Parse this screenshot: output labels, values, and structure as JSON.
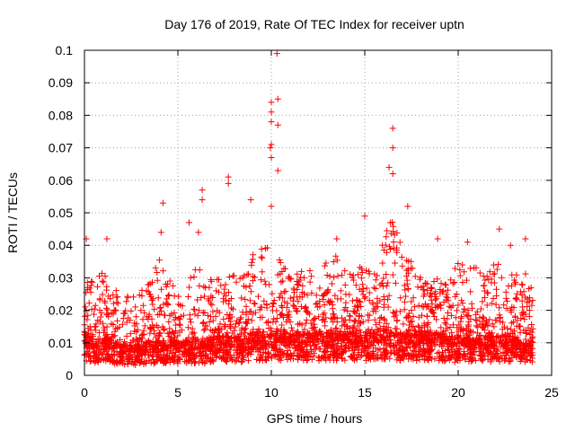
{
  "chart_data": {
    "type": "scatter",
    "title": "Day 176 of 2019, Rate Of TEC Index for receiver uptn",
    "xlabel": "GPS time / hours",
    "ylabel": "ROTI / TECUs",
    "xlim": [
      0,
      25
    ],
    "ylim": [
      0,
      0.1
    ],
    "x_ticks": [
      "0",
      "5",
      "10",
      "15",
      "20",
      "25"
    ],
    "y_ticks": [
      "0",
      "0.01",
      "0.02",
      "0.03",
      "0.04",
      "0.05",
      "0.06",
      "0.07",
      "0.08",
      "0.09",
      "0.1"
    ],
    "grid": true,
    "marker": "+",
    "series": [
      {
        "name": "ROTI",
        "color": "#ff0000",
        "notable_points": [
          {
            "x": 10.3,
            "y": 0.099
          },
          {
            "x": 10.35,
            "y": 0.085
          },
          {
            "x": 10.0,
            "y": 0.084
          },
          {
            "x": 10.0,
            "y": 0.081
          },
          {
            "x": 10.35,
            "y": 0.077
          },
          {
            "x": 10.0,
            "y": 0.078
          },
          {
            "x": 16.5,
            "y": 0.076
          },
          {
            "x": 10.0,
            "y": 0.071
          },
          {
            "x": 9.95,
            "y": 0.07
          },
          {
            "x": 16.5,
            "y": 0.07
          },
          {
            "x": 10.0,
            "y": 0.067
          },
          {
            "x": 16.3,
            "y": 0.064
          },
          {
            "x": 10.35,
            "y": 0.063
          },
          {
            "x": 16.5,
            "y": 0.062
          },
          {
            "x": 7.7,
            "y": 0.061
          },
          {
            "x": 7.7,
            "y": 0.059
          },
          {
            "x": 6.3,
            "y": 0.057
          },
          {
            "x": 6.3,
            "y": 0.054
          },
          {
            "x": 8.9,
            "y": 0.054
          },
          {
            "x": 4.2,
            "y": 0.053
          },
          {
            "x": 10.0,
            "y": 0.052
          },
          {
            "x": 17.3,
            "y": 0.052
          },
          {
            "x": 15.0,
            "y": 0.049
          },
          {
            "x": 5.6,
            "y": 0.047
          },
          {
            "x": 22.2,
            "y": 0.045
          },
          {
            "x": 4.1,
            "y": 0.044
          },
          {
            "x": 6.1,
            "y": 0.044
          },
          {
            "x": 18.9,
            "y": 0.042
          },
          {
            "x": 1.2,
            "y": 0.042
          },
          {
            "x": 0.1,
            "y": 0.042
          },
          {
            "x": 23.6,
            "y": 0.042
          },
          {
            "x": 13.5,
            "y": 0.042
          },
          {
            "x": 20.5,
            "y": 0.041
          },
          {
            "x": 22.8,
            "y": 0.04
          }
        ],
        "envelope": {
          "hours": [
            0,
            0.5,
            1,
            1.5,
            2,
            2.5,
            3,
            3.5,
            4,
            4.5,
            5,
            5.5,
            6,
            6.5,
            7,
            7.5,
            8,
            8.5,
            9,
            9.5,
            10,
            10.5,
            11,
            11.5,
            12,
            12.5,
            13,
            13.5,
            14,
            14.5,
            15,
            15.5,
            16,
            16.5,
            17,
            17.5,
            18,
            18.5,
            19,
            19.5,
            20,
            20.5,
            21,
            21.5,
            22,
            22.5,
            23,
            23.5,
            24
          ],
          "typical_max": [
            0.033,
            0.03,
            0.032,
            0.028,
            0.024,
            0.026,
            0.028,
            0.03,
            0.036,
            0.03,
            0.028,
            0.03,
            0.033,
            0.032,
            0.03,
            0.03,
            0.031,
            0.032,
            0.037,
            0.04,
            0.042,
            0.037,
            0.035,
            0.034,
            0.032,
            0.035,
            0.035,
            0.037,
            0.033,
            0.032,
            0.038,
            0.035,
            0.045,
            0.05,
            0.04,
            0.035,
            0.03,
            0.029,
            0.03,
            0.03,
            0.035,
            0.036,
            0.033,
            0.03,
            0.037,
            0.03,
            0.032,
            0.034,
            0.027
          ],
          "baseline": [
            0.01,
            0.008,
            0.009,
            0.008,
            0.007,
            0.007,
            0.007,
            0.008,
            0.008,
            0.008,
            0.008,
            0.008,
            0.008,
            0.008,
            0.009,
            0.009,
            0.009,
            0.009,
            0.01,
            0.01,
            0.01,
            0.01,
            0.01,
            0.01,
            0.01,
            0.01,
            0.01,
            0.01,
            0.01,
            0.01,
            0.01,
            0.01,
            0.011,
            0.011,
            0.01,
            0.01,
            0.01,
            0.01,
            0.01,
            0.009,
            0.009,
            0.009,
            0.009,
            0.009,
            0.009,
            0.009,
            0.009,
            0.009,
            0.009
          ]
        }
      }
    ]
  }
}
